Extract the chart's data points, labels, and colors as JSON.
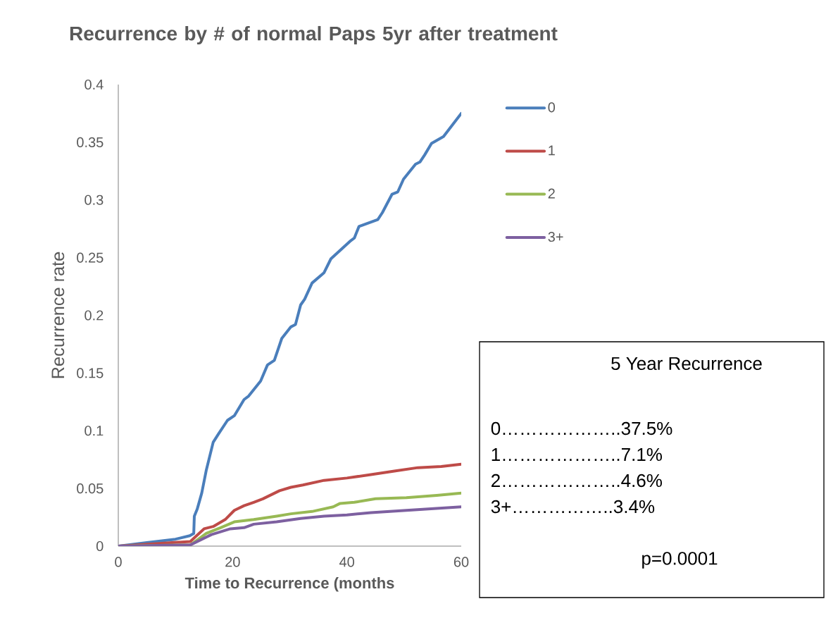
{
  "chart_data": {
    "type": "line",
    "title": "Recurrence by # of normal Paps 5yr after treatment",
    "xlabel": "Time to Recurrence (months",
    "ylabel": "Recurrence rate",
    "xlim": [
      0,
      60
    ],
    "ylim": [
      0,
      0.4
    ],
    "xticks": [
      0,
      20,
      40,
      60
    ],
    "yticks": [
      0,
      0.05,
      0.1,
      0.15,
      0.2,
      0.25,
      0.3,
      0.35,
      0.4
    ],
    "grid": false,
    "legend": "top right",
    "marker": "none",
    "line_style": "solid",
    "series": [
      {
        "name": "0",
        "color": "#4a7ebb",
        "x": [
          0,
          5,
          10,
          12.5,
          13.2,
          13.3,
          13.8,
          14.6,
          15.4,
          16.6,
          17.5,
          19.1,
          20.3,
          22,
          22.8,
          24.9,
          26.1,
          27.3,
          28.6,
          30.2,
          31,
          31.9,
          32.6,
          33.9,
          36,
          37.2,
          40.5,
          41.3,
          42.1,
          45.4,
          46.2,
          47.9,
          48.9,
          49.9,
          52,
          52.8,
          53.6,
          54.8,
          56.9,
          60
        ],
        "values": [
          0,
          0.003,
          0.006,
          0.009,
          0.011,
          0.026,
          0.032,
          0.046,
          0.066,
          0.09,
          0.097,
          0.109,
          0.113,
          0.127,
          0.13,
          0.143,
          0.157,
          0.161,
          0.18,
          0.19,
          0.192,
          0.209,
          0.214,
          0.228,
          0.237,
          0.249,
          0.264,
          0.267,
          0.277,
          0.283,
          0.289,
          0.305,
          0.307,
          0.318,
          0.331,
          0.333,
          0.339,
          0.349,
          0.355,
          0.375
        ]
      },
      {
        "name": "1",
        "color": "#be4b48",
        "x": [
          0,
          12.6,
          15,
          16.6,
          18.7,
          20.3,
          22,
          23.7,
          25.3,
          28.2,
          30.2,
          32.3,
          36,
          40,
          44.2,
          48.3,
          52.4,
          56.5,
          60
        ],
        "values": [
          0,
          0.004,
          0.015,
          0.017,
          0.023,
          0.031,
          0.035,
          0.038,
          0.041,
          0.048,
          0.051,
          0.053,
          0.057,
          0.059,
          0.062,
          0.065,
          0.068,
          0.069,
          0.071
        ]
      },
      {
        "name": "2",
        "color": "#98b954",
        "x": [
          0,
          12.6,
          15.4,
          17.9,
          20.3,
          23.7,
          27.7,
          30.2,
          33.9,
          37.6,
          38.8,
          41.3,
          45,
          50.4,
          55.7,
          60
        ],
        "values": [
          0,
          0.001,
          0.011,
          0.016,
          0.021,
          0.023,
          0.026,
          0.028,
          0.03,
          0.034,
          0.037,
          0.038,
          0.041,
          0.042,
          0.044,
          0.046
        ]
      },
      {
        "name": "3+",
        "color": "#7d60a0",
        "x": [
          0,
          12.6,
          16.3,
          19.6,
          22,
          23.7,
          27.7,
          31.9,
          36,
          40,
          44.2,
          50.4,
          60
        ],
        "values": [
          0,
          0.001,
          0.01,
          0.015,
          0.016,
          0.019,
          0.021,
          0.024,
          0.026,
          0.027,
          0.029,
          0.031,
          0.034
        ]
      }
    ],
    "annotations": [
      "5 Year Recurrence",
      "0………………..37.5%",
      "1………………..7.1%",
      "2………………..4.6%",
      "3+……………..3.4%",
      "p=0.0001"
    ]
  }
}
